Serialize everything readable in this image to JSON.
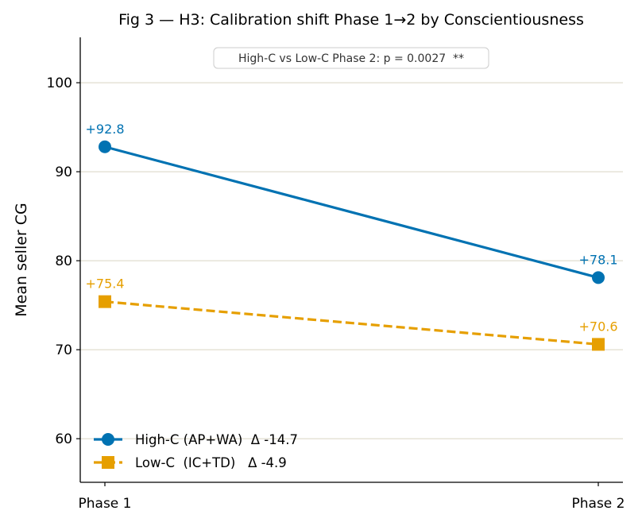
{
  "chart_data": {
    "type": "line",
    "title": "Fig 3 — H3: Calibration shift Phase 1→2 by Conscientiousness",
    "xlabel": "",
    "ylabel": "Mean seller CG",
    "categories": [
      "Phase 1",
      "Phase 2"
    ],
    "ylim": [
      55.1,
      105.1
    ],
    "yticks": [
      60,
      70,
      80,
      90,
      100
    ],
    "grid": "horizontal",
    "legend_position": "lower-left",
    "annotation": "High-C vs Low-C Phase 2: p = 0.0027  **",
    "series": [
      {
        "name": "High-C (AP+WA)  Δ -14.7",
        "values": [
          92.8,
          78.1
        ],
        "labels": [
          "+92.8",
          "+78.1"
        ],
        "color": "#0072b2",
        "marker": "circle",
        "linestyle": "solid"
      },
      {
        "name": "Low-C  (IC+TD)   Δ -4.9",
        "values": [
          75.4,
          70.6
        ],
        "labels": [
          "+75.4",
          "+70.6"
        ],
        "color": "#e69f00",
        "marker": "square",
        "linestyle": "dashed"
      }
    ]
  }
}
